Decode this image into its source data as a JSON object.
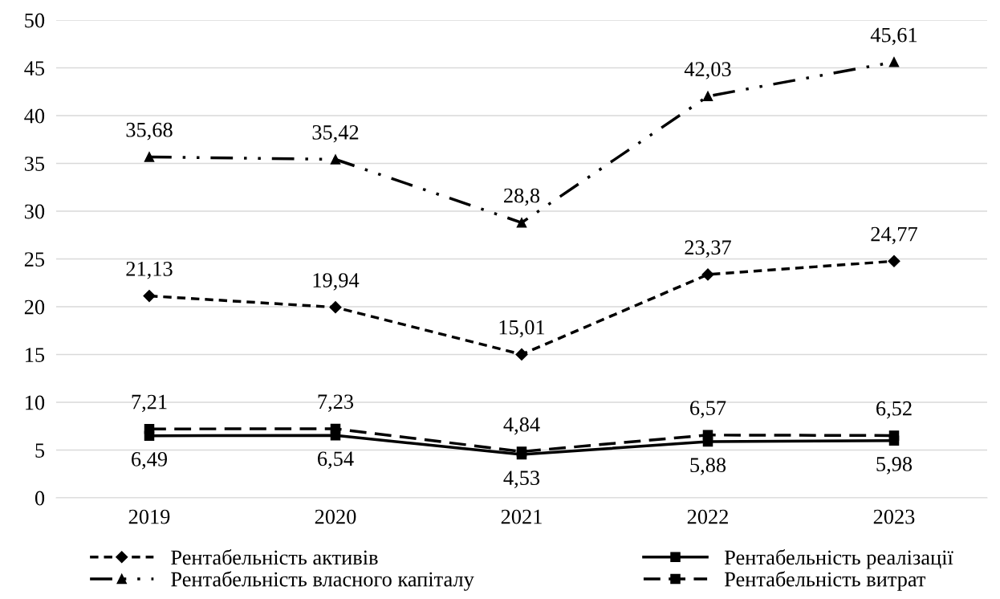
{
  "chart_data": {
    "type": "line",
    "categories": [
      "2019",
      "2020",
      "2021",
      "2022",
      "2023"
    ],
    "ylim": [
      0,
      50
    ],
    "yticks": [
      0,
      5,
      10,
      15,
      20,
      25,
      30,
      35,
      40,
      45,
      50
    ],
    "grid": "y",
    "legend": "bottom",
    "series": [
      {
        "name": "Рентабельність активів",
        "color": "#000000",
        "marker": "diamond",
        "line_style": "dashed",
        "values": [
          21.13,
          19.94,
          15.01,
          23.37,
          24.77
        ],
        "value_labels": [
          "21,13",
          "19,94",
          "15,01",
          "23,37",
          "24,77"
        ]
      },
      {
        "name": "Рентабельність власного капіталу",
        "color": "#000000",
        "marker": "triangle",
        "line_style": "dashdotdot",
        "values": [
          35.68,
          35.42,
          28.8,
          42.03,
          45.61
        ],
        "value_labels": [
          "35,68",
          "35,42",
          "28,8",
          "42,03",
          "45,61"
        ]
      },
      {
        "name": "Рентабельність реалізації",
        "color": "#000000",
        "marker": "square",
        "line_style": "solid",
        "values": [
          6.49,
          6.54,
          4.53,
          5.88,
          5.98
        ],
        "value_labels": [
          "6,49",
          "6,54",
          "4,53",
          "5,88",
          "5,98"
        ]
      },
      {
        "name": "Рентабельність витрат",
        "color": "#000000",
        "marker": "square",
        "line_style": "longdashed",
        "values": [
          7.21,
          7.23,
          4.84,
          6.57,
          6.52
        ],
        "value_labels": [
          "7,21",
          "7,23",
          "4,84",
          "6,57",
          "6,52"
        ]
      }
    ]
  }
}
